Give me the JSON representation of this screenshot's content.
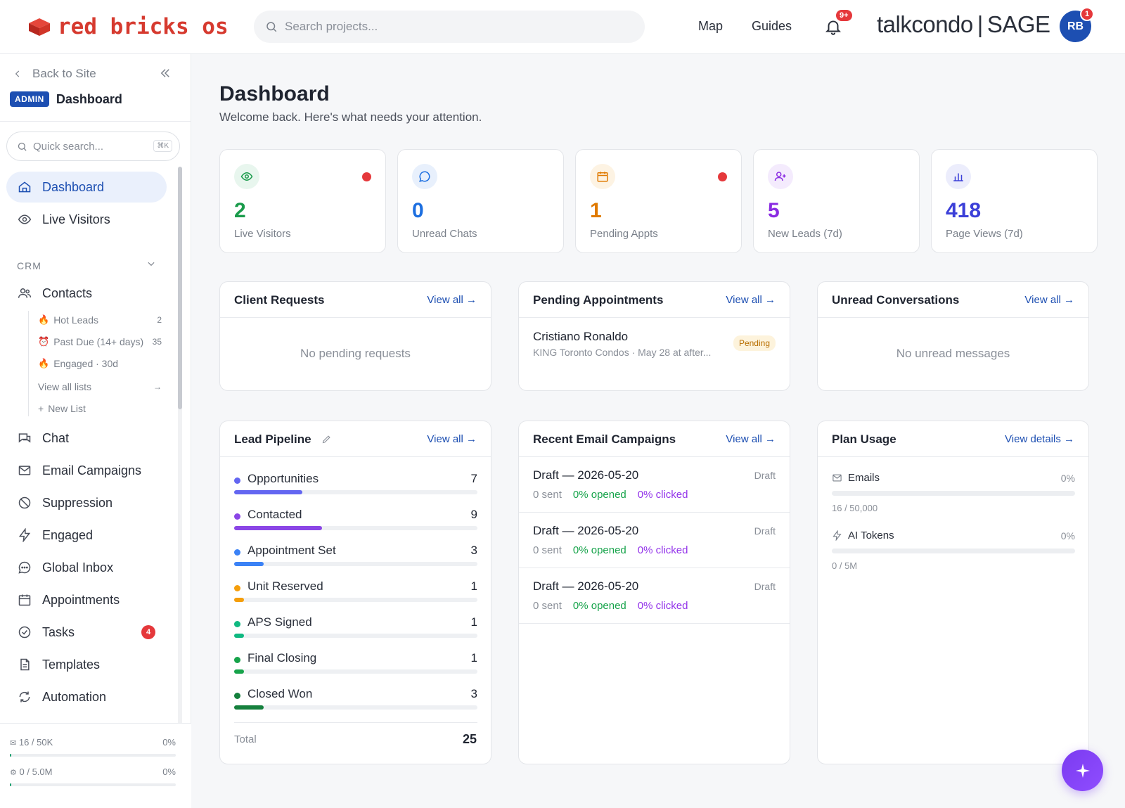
{
  "header": {
    "logo_text": "red bricks os",
    "search_placeholder": "Search projects...",
    "nav": [
      "Map",
      "Guides"
    ],
    "notification_badge": "9+",
    "brand_left": "talkcondo",
    "brand_right": "SAGE",
    "avatar_initials": "RB",
    "avatar_badge": "1"
  },
  "sidebar": {
    "back_label": "Back to Site",
    "admin_tag": "ADMIN",
    "section_title": "Dashboard",
    "quick_search_placeholder": "Quick search...",
    "quick_search_shortcut": "⌘K",
    "items_top": [
      {
        "label": "Dashboard",
        "icon": "home-icon"
      },
      {
        "label": "Live Visitors",
        "icon": "eye-icon"
      }
    ],
    "crm_label": "CRM",
    "contacts_label": "Contacts",
    "contact_lists": [
      {
        "label": "Hot Leads",
        "count": "2",
        "icon": "fire-icon"
      },
      {
        "label": "Past Due (14+ days)",
        "count": "35",
        "icon": "alarm-icon"
      },
      {
        "label": "Engaged · 30d",
        "count": "",
        "icon": "fire-icon"
      }
    ],
    "view_all_lists": "View all lists",
    "new_list": "New List",
    "items_bottom": [
      {
        "label": "Chat",
        "icon": "chat-icon"
      },
      {
        "label": "Email Campaigns",
        "icon": "mail-icon"
      },
      {
        "label": "Suppression",
        "icon": "ban-icon"
      },
      {
        "label": "Engaged",
        "icon": "bolt-icon"
      },
      {
        "label": "Global Inbox",
        "icon": "message-icon"
      },
      {
        "label": "Appointments",
        "icon": "calendar-icon"
      },
      {
        "label": "Tasks",
        "icon": "check-circle-icon",
        "badge": "4"
      },
      {
        "label": "Templates",
        "icon": "file-icon"
      },
      {
        "label": "Automation",
        "icon": "refresh-icon"
      }
    ],
    "usage": [
      {
        "label": "16 / 50K",
        "pct": "0%",
        "fill": 0.01
      },
      {
        "label": "0 / 5.0M",
        "pct": "0%",
        "fill": 0.01
      }
    ]
  },
  "main": {
    "title": "Dashboard",
    "subtitle": "Welcome back. Here's what needs your attention.",
    "stats": [
      {
        "value": "2",
        "label": "Live Visitors",
        "color": "#1a9b4b",
        "bg": "#e8f6ee",
        "icon": "eye-icon",
        "alert": true
      },
      {
        "value": "0",
        "label": "Unread Chats",
        "color": "#1d6fe0",
        "bg": "#e8f0fc",
        "icon": "chat-bubble-icon",
        "alert": false
      },
      {
        "value": "1",
        "label": "Pending Appts",
        "color": "#e07a00",
        "bg": "#fdf3e3",
        "icon": "calendar-icon",
        "alert": true
      },
      {
        "value": "5",
        "label": "New Leads (7d)",
        "color": "#8a2be2",
        "bg": "#f4ebfd",
        "icon": "user-plus-icon",
        "alert": false
      },
      {
        "value": "418",
        "label": "Page Views (7d)",
        "color": "#3b3fd8",
        "bg": "#ecedfc",
        "icon": "bar-chart-icon",
        "alert": false
      }
    ],
    "client_requests": {
      "title": "Client Requests",
      "link": "View all →",
      "empty": "No pending requests"
    },
    "pending_appointments": {
      "title": "Pending Appointments",
      "link": "View all →",
      "item": {
        "name": "Cristiano Ronaldo",
        "detail": "KING Toronto Condos · May 28 at after...",
        "status": "Pending"
      }
    },
    "unread_conversations": {
      "title": "Unread Conversations",
      "link": "View all →",
      "empty": "No unread messages"
    },
    "lead_pipeline": {
      "title": "Lead Pipeline",
      "link": "View all →",
      "stages": [
        {
          "name": "Opportunities",
          "count": "7",
          "color": "#6366f1",
          "fill": 0.28
        },
        {
          "name": "Contacted",
          "count": "9",
          "color": "#8b46e6",
          "fill": 0.36
        },
        {
          "name": "Appointment Set",
          "count": "3",
          "color": "#3b82f6",
          "fill": 0.12
        },
        {
          "name": "Unit Reserved",
          "count": "1",
          "color": "#f59e0b",
          "fill": 0.04
        },
        {
          "name": "APS Signed",
          "count": "1",
          "color": "#10b981",
          "fill": 0.04
        },
        {
          "name": "Final Closing",
          "count": "1",
          "color": "#16a34a",
          "fill": 0.04
        },
        {
          "name": "Closed Won",
          "count": "3",
          "color": "#15803d",
          "fill": 0.12
        }
      ],
      "total_label": "Total",
      "total_value": "25"
    },
    "email_campaigns": {
      "title": "Recent Email Campaigns",
      "link": "View all →",
      "items": [
        {
          "name": "Draft — 2026-05-20",
          "status": "Draft",
          "sent": "0 sent",
          "opened": "0% opened",
          "clicked": "0% clicked"
        },
        {
          "name": "Draft — 2026-05-20",
          "status": "Draft",
          "sent": "0 sent",
          "opened": "0% opened",
          "clicked": "0% clicked"
        },
        {
          "name": "Draft — 2026-05-20",
          "status": "Draft",
          "sent": "0 sent",
          "opened": "0% opened",
          "clicked": "0% clicked"
        }
      ]
    },
    "plan_usage": {
      "title": "Plan Usage",
      "link": "View details →",
      "items": [
        {
          "label": "Emails",
          "pct": "0%",
          "sub": "16 / 50,000",
          "icon": "mail-icon",
          "fill": 0
        },
        {
          "label": "AI Tokens",
          "pct": "0%",
          "sub": "0 / 5M",
          "icon": "bolt-icon",
          "fill": 0
        }
      ]
    }
  }
}
